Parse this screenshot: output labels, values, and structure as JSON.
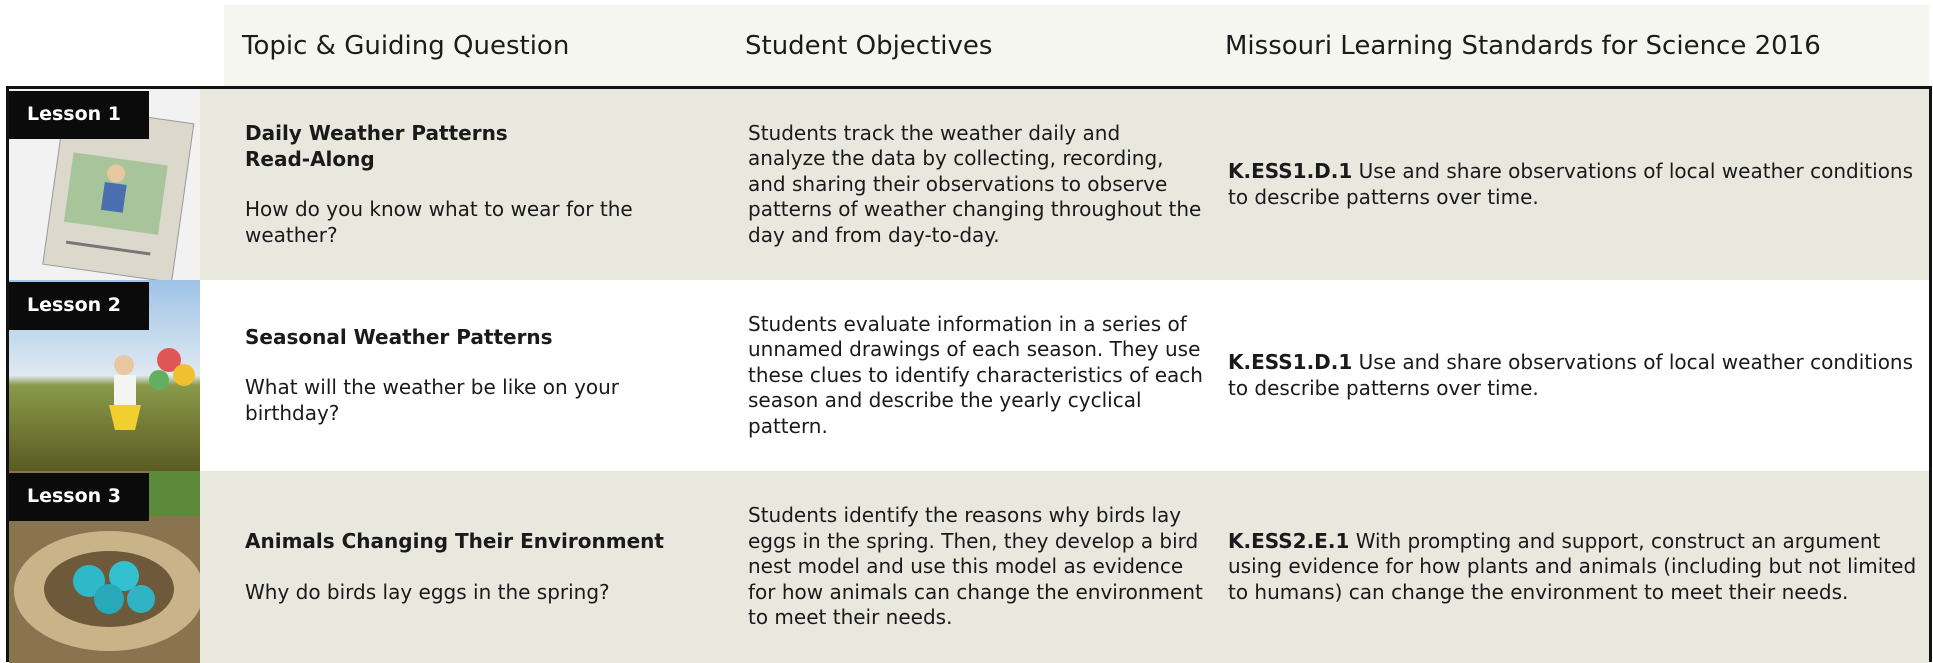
{
  "header": [
    "Topic & Guiding Question",
    "Student Objectives",
    "Missouri Learning  Standards for Science 2016"
  ],
  "rows": [
    {
      "lesson": "Lesson 1",
      "topic": "Daily Weather Patterns\nRead-Along",
      "question": "How do you know what to wear for the weather?",
      "objectives": "Students track the weather daily and analyze the data by collecting, recording, and sharing their observations to observe patterns of weather changing throughout the day and from day-to-day.",
      "standard_code": "K.ESS1.D.1",
      "standard_text": "Use and share observations of local weather conditions to describe patterns over time."
    },
    {
      "lesson": "Lesson 2",
      "topic": "Seasonal Weather Patterns",
      "question": "What will the weather be like on your birthday?",
      "objectives": "Students evaluate information in a series of unnamed drawings of each season. They use these clues to identify characteristics of each season and describe the yearly cyclical pattern.",
      "standard_code": "K.ESS1.D.1",
      "standard_text": "Use and share observations of local weather conditions to describe patterns over time."
    },
    {
      "lesson": "Lesson 3",
      "topic": "Animals Changing Their Environment",
      "question": "Why do birds lay eggs in the spring?",
      "objectives": "Students identify the reasons why birds lay eggs in the spring. Then, they develop a bird nest model and use this model as evidence for how animals can change the environment to meet their needs.",
      "standard_code": "K.ESS2.E.1",
      "standard_text": "With prompting and support, construct an argument using evidence for how plants and animals (including but not limited to humans) can change the environment to meet their needs."
    }
  ]
}
